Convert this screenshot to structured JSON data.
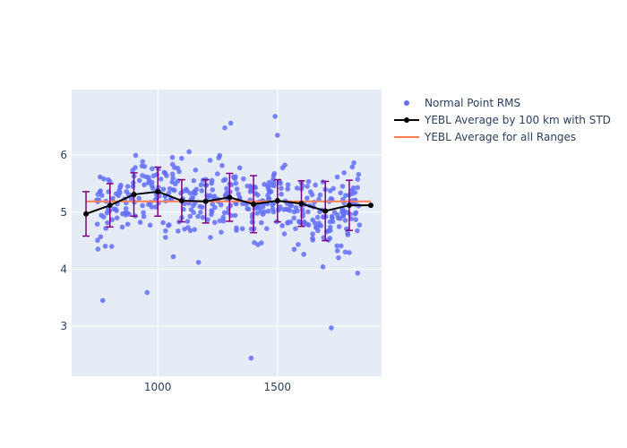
{
  "chart_data": {
    "type": "scatter",
    "title": "",
    "xlabel": "",
    "ylabel": "",
    "xlim": [
      640,
      1935
    ],
    "ylim": [
      2.12,
      7.15
    ],
    "x_ticks": [
      1000,
      1500
    ],
    "y_ticks": [
      3,
      4,
      5,
      6
    ],
    "grid": true,
    "legend_position": "top-right",
    "colors": {
      "plot_bg": "#e5ecf6",
      "grid": "#ffffff",
      "points": "#636efa",
      "average_line": "#000000",
      "error_bars": "#800080",
      "overall_line": "#ff7f50"
    },
    "legend": [
      {
        "label": "Normal Point RMS",
        "type": "marker"
      },
      {
        "label": "YEBL Average by 100 km with STD",
        "type": "line-marker"
      },
      {
        "label": "YEBL Average for all Ranges",
        "type": "line"
      }
    ],
    "series": [
      {
        "name": "YEBL Average by 100 km with STD",
        "x": [
          700,
          800,
          900,
          1000,
          1100,
          1200,
          1300,
          1400,
          1500,
          1600,
          1700,
          1800,
          1890
        ],
        "y": [
          4.97,
          5.12,
          5.31,
          5.36,
          5.2,
          5.19,
          5.26,
          5.14,
          5.2,
          5.15,
          5.02,
          5.12,
          5.12
        ],
        "std": [
          0.39,
          0.38,
          0.38,
          0.43,
          0.37,
          0.38,
          0.42,
          0.5,
          0.37,
          0.4,
          0.52,
          0.44,
          0.0
        ]
      },
      {
        "name": "YEBL Average for all Ranges",
        "x": [
          700,
          1890
        ],
        "y": [
          5.19,
          5.19
        ]
      }
    ],
    "scatter_outliers": {
      "name": "Normal Point RMS",
      "x": [
        770,
        955,
        1280,
        1390,
        1490,
        1500,
        1305,
        1725,
        1835,
        1800,
        1755,
        1610,
        1690,
        1065,
        1170
      ],
      "y": [
        3.45,
        3.59,
        6.48,
        2.44,
        6.68,
        6.35,
        6.56,
        2.97,
        3.93,
        4.29,
        4.2,
        4.26,
        4.04,
        4.22,
        4.12
      ]
    }
  }
}
